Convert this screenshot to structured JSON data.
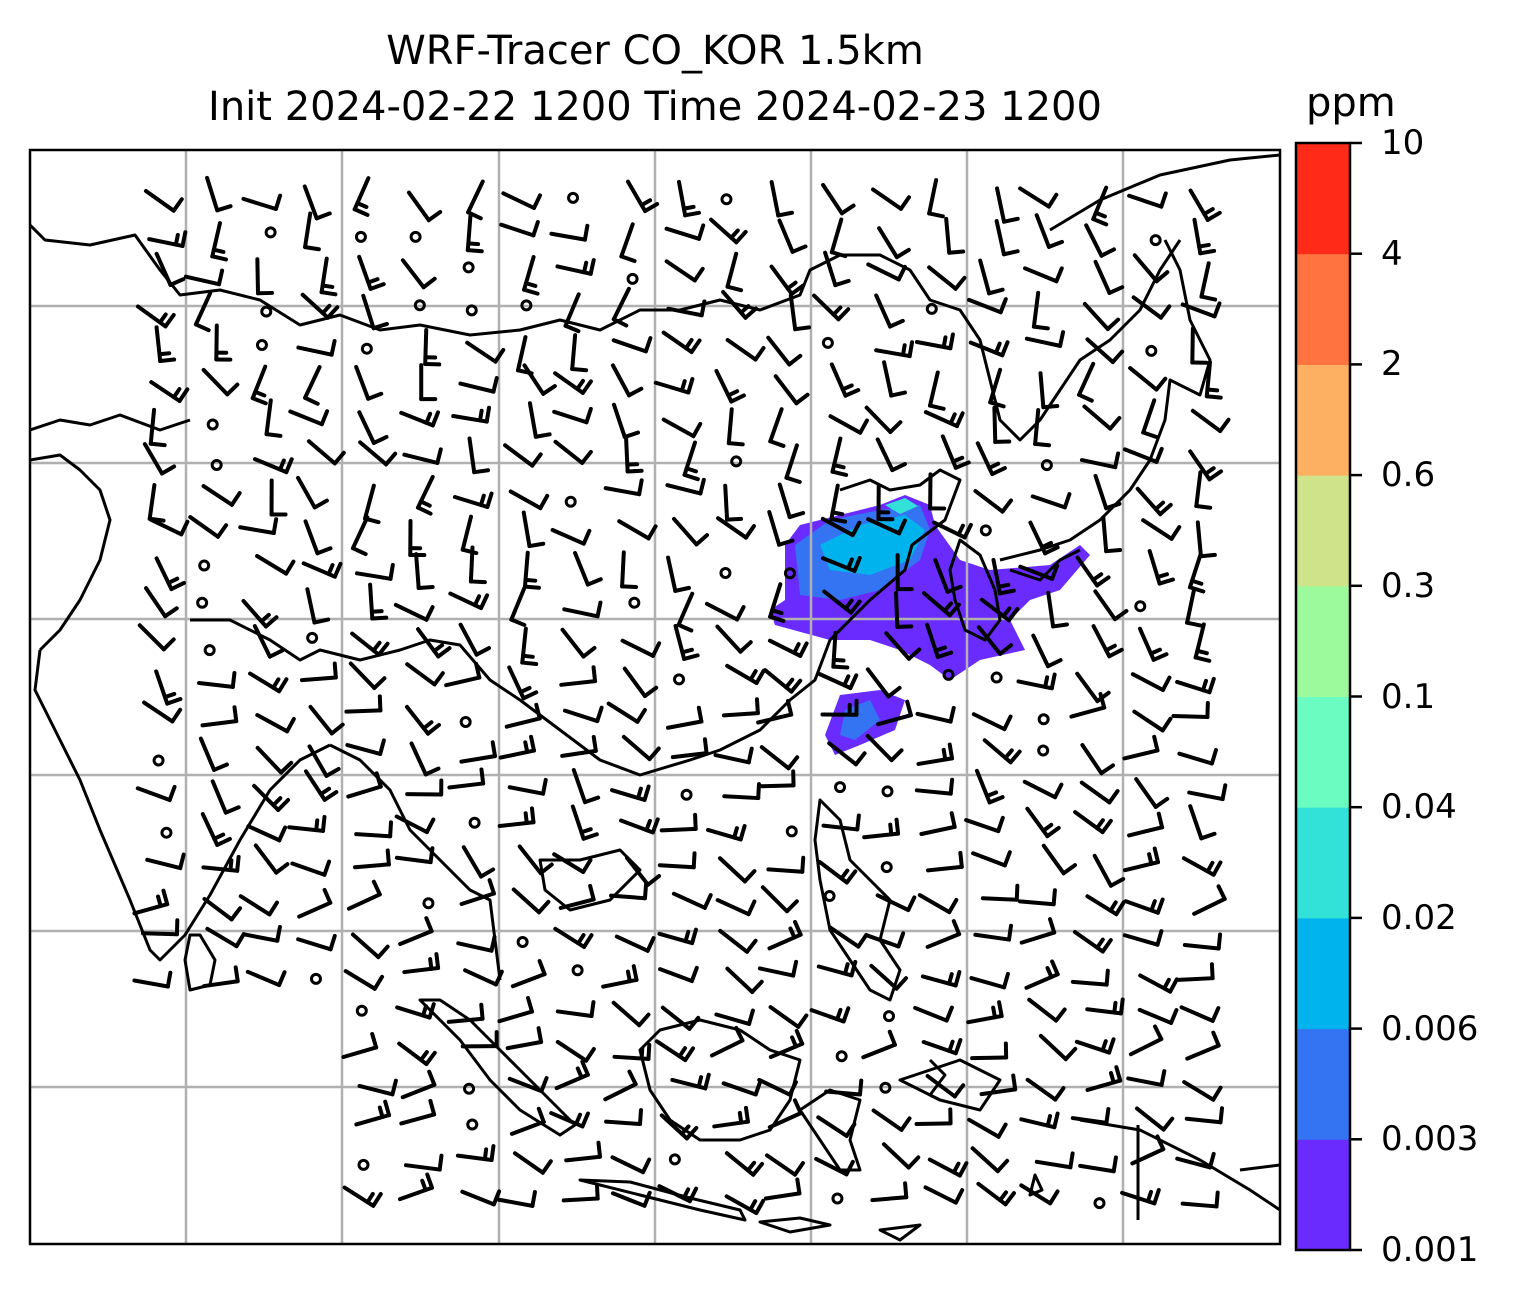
{
  "title_line1": "WRF-Tracer CO_KOR 1.5km",
  "title_line2": "Init 2024-02-22 1200 Time 2024-02-23 1200",
  "colorbar": {
    "units": "ppm",
    "levels": [
      "0.001",
      "0.003",
      "0.006",
      "0.02",
      "0.04",
      "0.1",
      "0.3",
      "0.6",
      "2",
      "4",
      "10"
    ],
    "colors": [
      "#6a2bff",
      "#3473f2",
      "#00b3ec",
      "#32e1d7",
      "#6afcc1",
      "#9cfa9c",
      "#cee38a",
      "#fdaf62",
      "#ff7340",
      "#ff2a18"
    ]
  },
  "map": {
    "field": "CO tracer concentration",
    "plume_colors": {
      "low": "#6a2bff",
      "mid": "#3473f2",
      "high": "#00b3ec",
      "peak": "#32e1d7"
    },
    "gridline_color": "#b0b0b0"
  }
}
